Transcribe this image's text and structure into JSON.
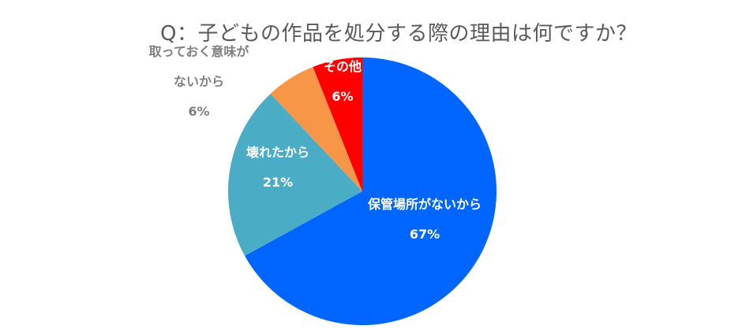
{
  "chart_data": {
    "type": "pie",
    "title": "Q：子どもの作品を処分する際の理由は何ですか？",
    "slices": [
      {
        "label_lines": [
          "保管場所がないから"
        ],
        "value": 67,
        "value_label": "67%",
        "color": "#0066FF",
        "label_color": "#ffffff"
      },
      {
        "label_lines": [
          "壊れたから"
        ],
        "value": 21,
        "value_label": "21%",
        "color": "#4BACC6",
        "label_color": "#ffffff"
      },
      {
        "label_lines": [
          "取っておく意味が",
          "ないから"
        ],
        "value": 6,
        "value_label": "6%",
        "color": "#F79646",
        "label_color": "#7F7F7F"
      },
      {
        "label_lines": [
          "その他"
        ],
        "value": 6,
        "value_label": "6%",
        "color": "#FF0000",
        "label_color": "#ffffff"
      }
    ]
  }
}
